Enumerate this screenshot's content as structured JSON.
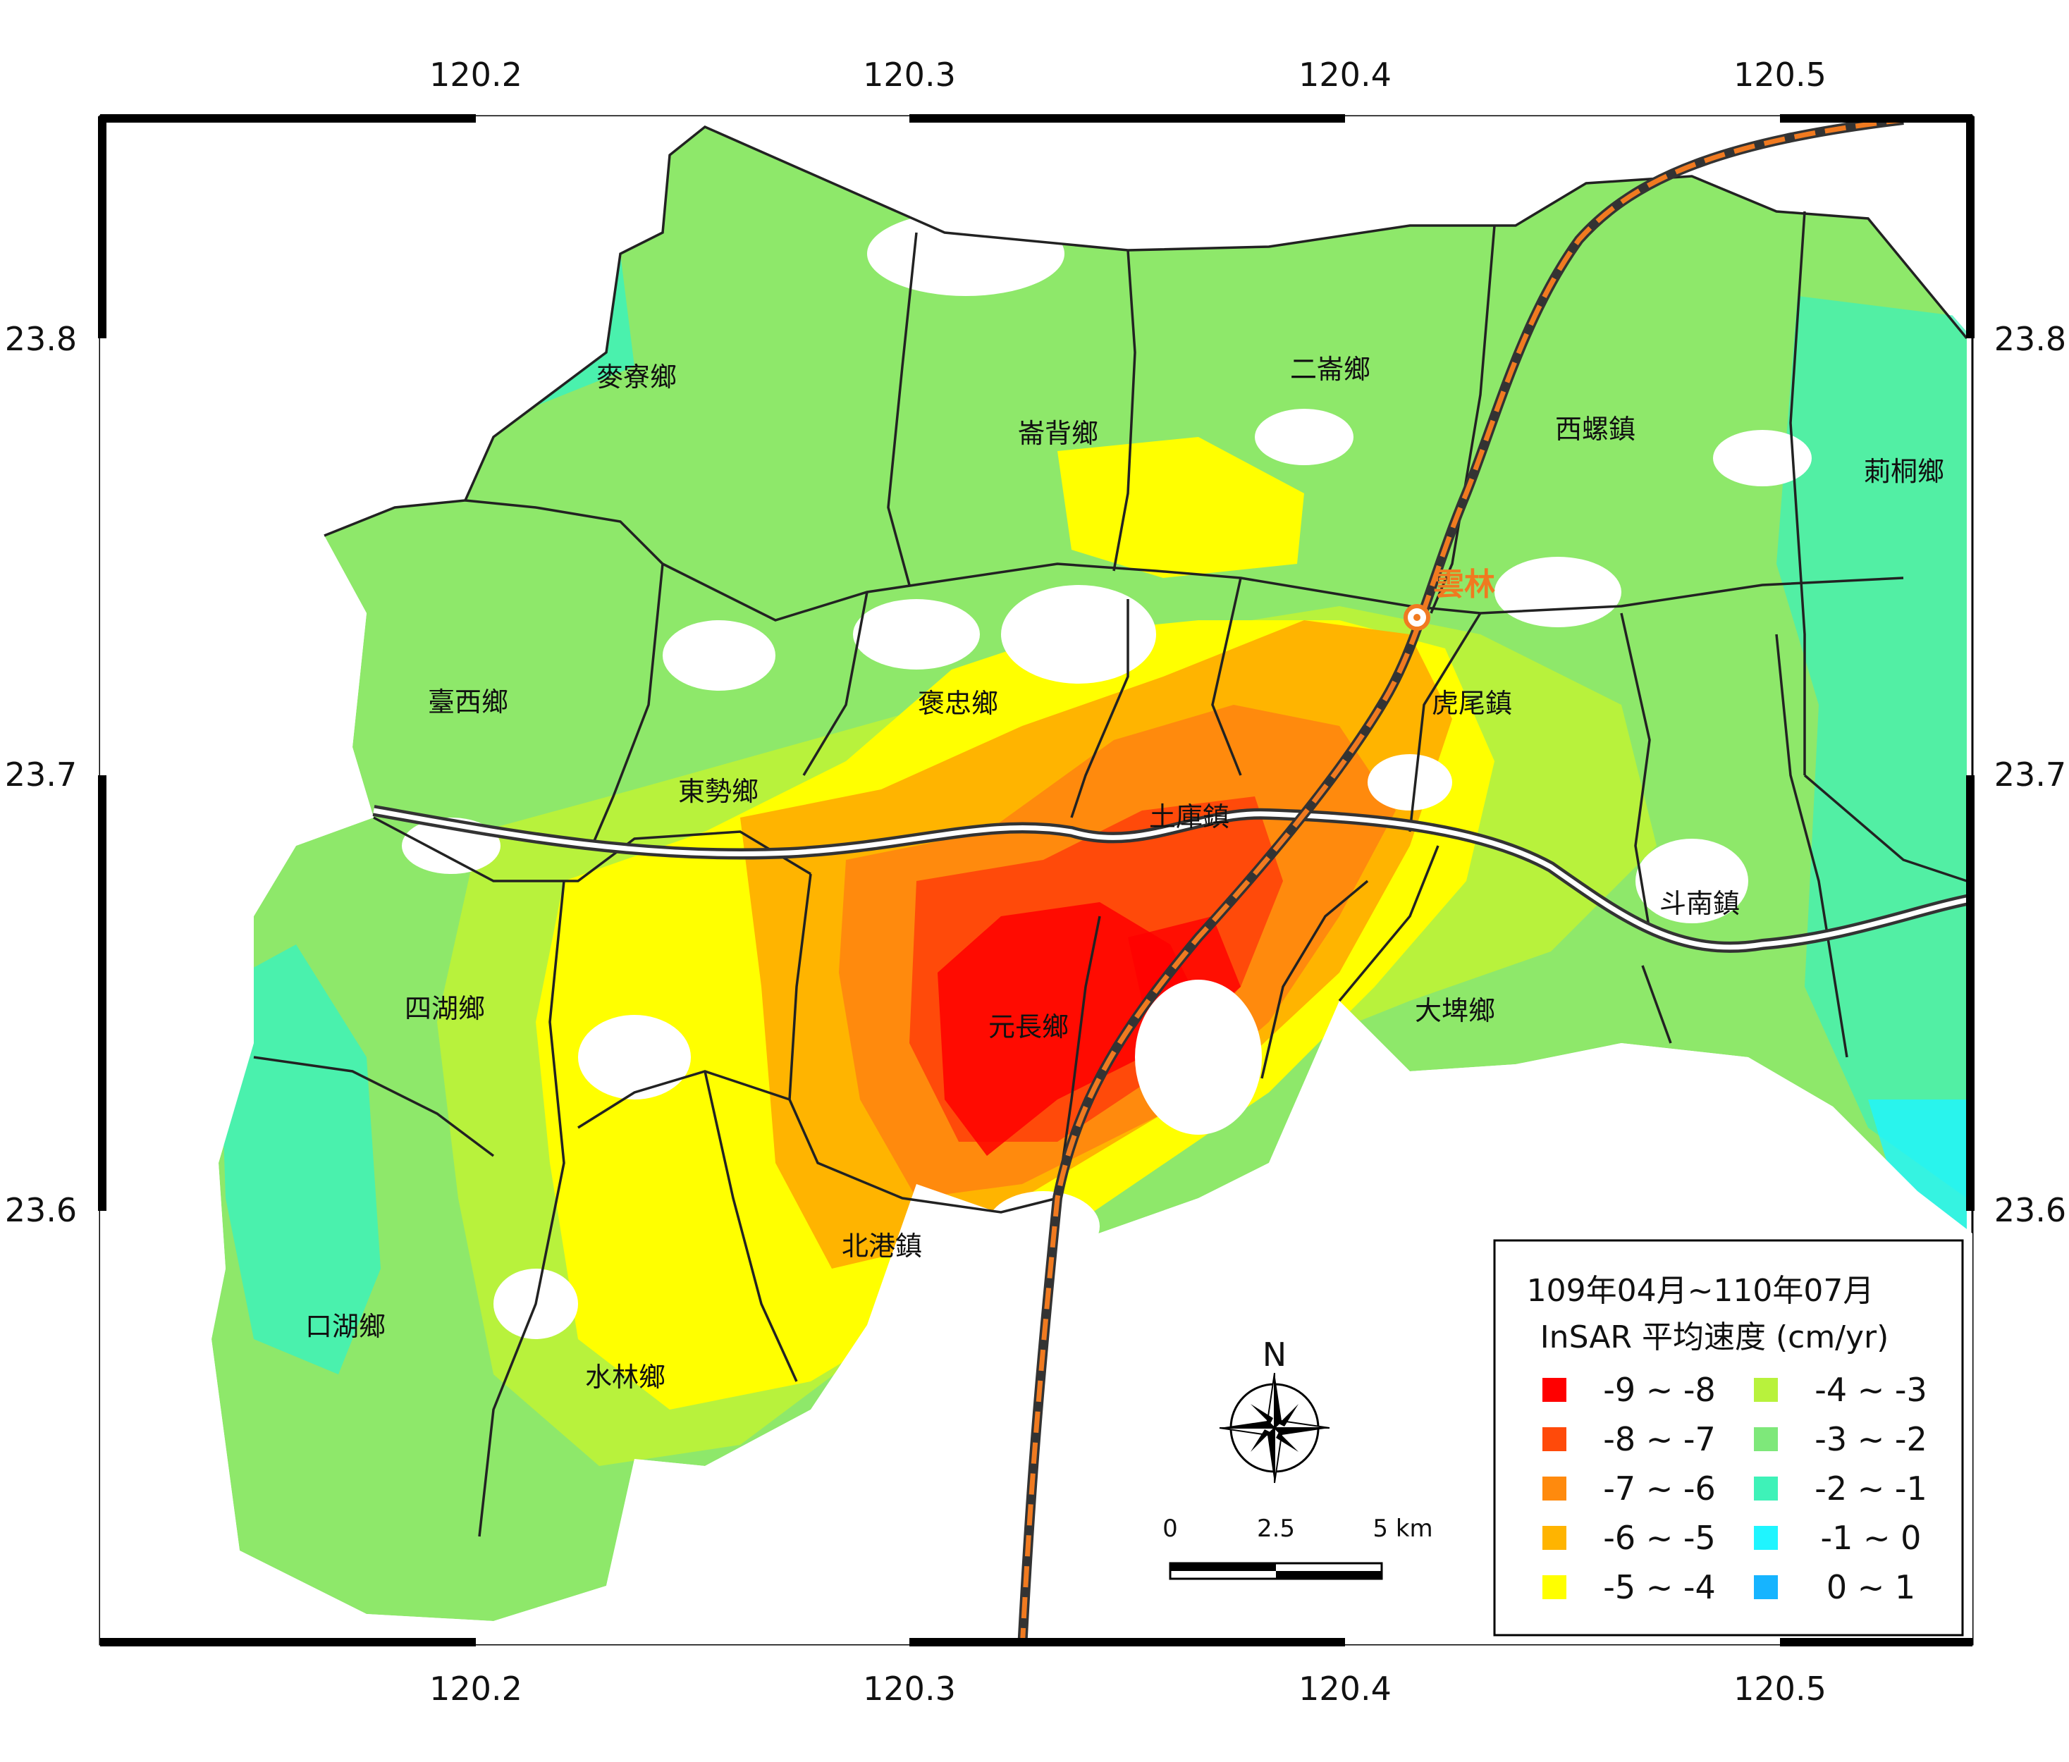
{
  "map": {
    "lon_ticks": [
      "120.2",
      "120.3",
      "120.4",
      "120.5"
    ],
    "lat_ticks": [
      "23.8",
      "23.7",
      "23.6"
    ],
    "townships": [
      "麥寮鄉",
      "崙背鄉",
      "二崙鄉",
      "西螺鎮",
      "莿桐鄉",
      "臺西鄉",
      "褒忠鄉",
      "虎尾鎮",
      "東勢鄉",
      "土庫鎮",
      "斗南鎮",
      "四湖鄉",
      "元長鄉",
      "大埤鄉",
      "北港鎮",
      "口湖鄉",
      "水林鄉"
    ],
    "station": "雲林"
  },
  "legend": {
    "title_line1": "109年04月~110年07月",
    "title_line2": "InSAR 平均速度 (cm/yr)",
    "classes": [
      {
        "label": "-9 ~ -8",
        "color": "#ff0000"
      },
      {
        "label": "-8 ~ -7",
        "color": "#ff4a0a"
      },
      {
        "label": "-7 ~ -6",
        "color": "#ff8a0d"
      },
      {
        "label": "-6 ~ -5",
        "color": "#ffb400"
      },
      {
        "label": "-5 ~ -4",
        "color": "#ffff00"
      },
      {
        "label": "-4 ~ -3",
        "color": "#b8f23c"
      },
      {
        "label": "-3 ~ -2",
        "color": "#7ee87a"
      },
      {
        "label": "-2 ~ -1",
        "color": "#3ef2b8"
      },
      {
        "label": "-1 ~ 0",
        "color": "#1ff5ff"
      },
      {
        "label": "0 ~ 1",
        "color": "#16b4ff"
      }
    ]
  },
  "north_arrow": "N",
  "scale_bar": {
    "labels": [
      "0",
      "2.5",
      "5 km"
    ]
  }
}
